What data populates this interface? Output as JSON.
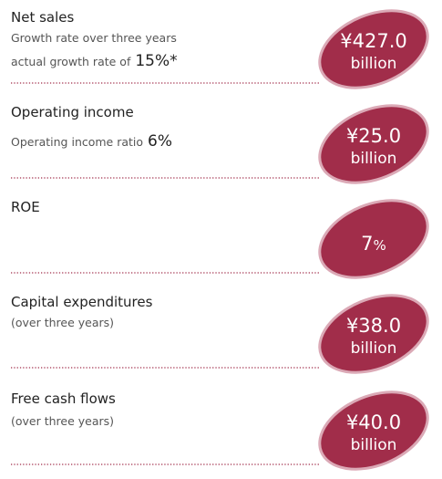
{
  "items": [
    {
      "title": "Net sales",
      "notes": [
        "Growth rate over three years",
        "actual growth rate of"
      ],
      "highlight": "15%*",
      "value": "¥427.0",
      "unit": "billion"
    },
    {
      "title": "Operating income",
      "notes": [
        "Operating income ratio"
      ],
      "highlight": "6%",
      "value": "¥25.0",
      "unit": "billion"
    },
    {
      "title": "ROE",
      "value": "7",
      "suffix": "%"
    },
    {
      "title": "Capital expenditures",
      "notes": [
        "(over three years)"
      ],
      "value": "¥38.0",
      "unit": "billion"
    },
    {
      "title": "Free cash flows",
      "notes": [
        "(over three years)"
      ],
      "value": "¥40.0",
      "unit": "billion"
    }
  ]
}
